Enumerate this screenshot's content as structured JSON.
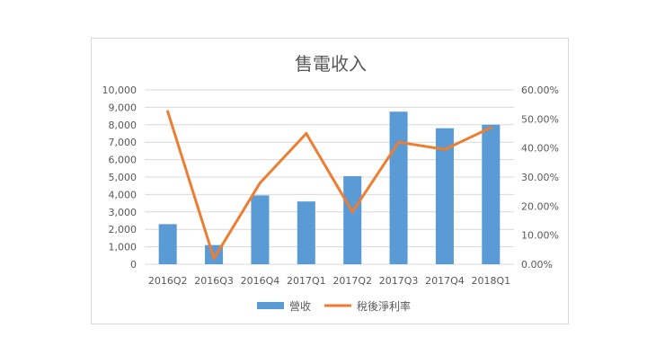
{
  "chart_data": {
    "type": "bar",
    "title": "售電收入",
    "categories": [
      "2016Q2",
      "2016Q3",
      "2016Q4",
      "2017Q1",
      "2017Q2",
      "2017Q3",
      "2017Q4",
      "2018Q1"
    ],
    "series": [
      {
        "name": "營收",
        "type": "bar",
        "axis": "left",
        "color": "#5b9bd5",
        "values": [
          2300,
          1100,
          3950,
          3600,
          5050,
          8750,
          7800,
          8000
        ]
      },
      {
        "name": "稅後淨利率",
        "type": "line",
        "axis": "right",
        "color": "#ed7d31",
        "values": [
          0.525,
          0.02,
          0.28,
          0.45,
          0.18,
          0.42,
          0.395,
          0.47
        ]
      }
    ],
    "ylim_left": [
      0,
      10000
    ],
    "yticks_left": [
      "0",
      "1,000",
      "2,000",
      "3,000",
      "4,000",
      "5,000",
      "6,000",
      "7,000",
      "8,000",
      "9,000",
      "10,000"
    ],
    "ylim_right": [
      0,
      0.6
    ],
    "yticks_right": [
      "0.00%",
      "10.00%",
      "20.00%",
      "30.00%",
      "40.00%",
      "50.00%",
      "60.00%"
    ],
    "grid": true,
    "legend_position": "bottom"
  }
}
